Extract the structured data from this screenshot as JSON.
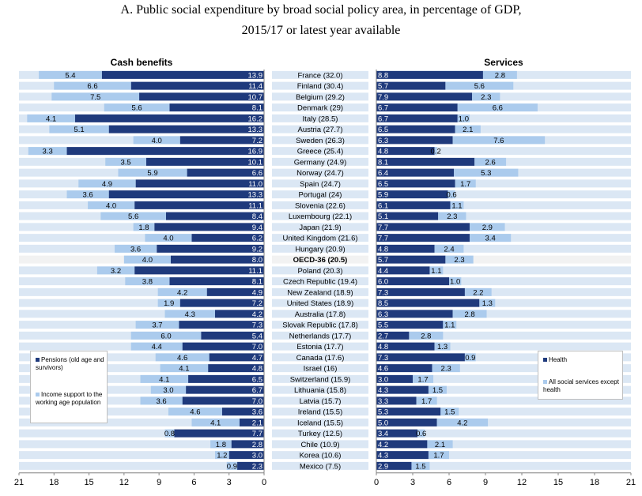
{
  "title_line1": "A. Public social expenditure by broad social policy area, in percentage of GDP,",
  "title_line2": "2015/17 or latest year available",
  "colors": {
    "dark": "#1f3a7c",
    "light": "#abcbed",
    "band": "#dbe7f4",
    "bold_band": "#f2f2f2"
  },
  "chart_data": [
    {
      "type": "bar",
      "title": "Cash benefits",
      "orientation": "horizontal-reversed",
      "stacked": true,
      "xlim": [
        21,
        0
      ],
      "ticks": [
        "21",
        "18",
        "15",
        "12",
        "9",
        "6",
        "3",
        "0"
      ],
      "legend_position": "bottom-left",
      "series": [
        {
          "name": "Pensions (old age and survivors)",
          "color": "#1f3a7c",
          "values": [
            13.9,
            11.4,
            10.7,
            8.1,
            16.2,
            13.3,
            7.2,
            16.9,
            10.1,
            6.6,
            11.0,
            13.3,
            11.1,
            8.4,
            9.4,
            6.2,
            9.2,
            8.0,
            11.1,
            8.1,
            4.9,
            7.2,
            4.2,
            7.3,
            5.4,
            7.0,
            4.7,
            4.8,
            6.5,
            6.7,
            7.0,
            3.6,
            2.1,
            7.7,
            2.8,
            3.0,
            2.3
          ]
        },
        {
          "name": "Income support to the working age population",
          "color": "#abcbed",
          "values": [
            5.4,
            6.6,
            7.5,
            5.6,
            4.1,
            5.1,
            4.0,
            3.3,
            3.5,
            5.9,
            4.9,
            3.6,
            4.0,
            5.6,
            1.8,
            4.0,
            3.6,
            4.0,
            3.2,
            3.8,
            4.2,
            1.9,
            4.3,
            3.7,
            6.0,
            4.4,
            4.6,
            4.1,
            4.1,
            3.0,
            3.6,
            4.6,
            4.1,
            0.8,
            1.8,
            1.2,
            0.9
          ]
        }
      ]
    },
    {
      "type": "bar",
      "title": "Services",
      "orientation": "horizontal",
      "stacked": true,
      "xlim": [
        0,
        21
      ],
      "ticks": [
        "0",
        "3",
        "6",
        "9",
        "12",
        "15",
        "18",
        "21"
      ],
      "legend_position": "right",
      "series": [
        {
          "name": "Health",
          "color": "#1f3a7c",
          "values": [
            8.8,
            5.7,
            7.9,
            6.7,
            6.7,
            6.5,
            6.3,
            4.8,
            8.1,
            6.4,
            6.5,
            5.9,
            6.1,
            5.1,
            7.7,
            7.7,
            4.8,
            5.7,
            4.4,
            6.0,
            7.3,
            8.5,
            6.3,
            5.5,
            2.7,
            4.8,
            7.3,
            4.6,
            3.0,
            4.3,
            3.3,
            5.3,
            5.0,
            3.4,
            4.2,
            4.3,
            2.9
          ]
        },
        {
          "name": "All social services except health",
          "color": "#abcbed",
          "values": [
            2.8,
            5.6,
            2.3,
            6.6,
            1.0,
            2.1,
            7.6,
            0.2,
            2.6,
            5.3,
            1.7,
            0.6,
            1.1,
            2.3,
            2.9,
            3.4,
            2.4,
            2.3,
            1.1,
            1.0,
            2.2,
            1.3,
            2.8,
            1.1,
            2.8,
            1.3,
            0.9,
            2.3,
            1.7,
            1.5,
            1.7,
            1.5,
            4.2,
            0.6,
            2.1,
            1.7,
            1.5
          ]
        }
      ]
    }
  ],
  "countries": [
    "France (32.0)",
    "Finland (30.4)",
    "Belgium (29.2)",
    "Denmark (29)",
    "Italy (28.5)",
    "Austria (27.7)",
    "Sweden (26.3)",
    "Greece (25.4)",
    "Germany (24.9)",
    "Norway (24.7)",
    "Spain (24.7)",
    "Portugal (24)",
    "Slovenia (22.6)",
    "Luxembourg (22.1)",
    "Japan (21.9)",
    "United Kingdom (21.6)",
    "Hungary (20.9)",
    "OECD-36 (20.5)",
    "Poland (20.3)",
    "Czech Republic (19.4)",
    "New Zealand (18.9)",
    "United States (18.9)",
    "Australia (17.8)",
    "Slovak Republic (17.8)",
    "Netherlands (17.7)",
    "Estonia (17.7)",
    "Canada (17.6)",
    "Israel (16)",
    "Switzerland (15.9)",
    "Lithuania (15.8)",
    "Latvia (15.7)",
    "Ireland (15.5)",
    "Iceland (15.5)",
    "Turkey (12.5)",
    "Chile (10.9)",
    "Korea (10.6)",
    "Mexico (7.5)"
  ],
  "bold_country": "OECD-36 (20.5)",
  "left_legend": {
    "series1": "Pensions (old age and survivors)",
    "series2": "Income support to the working age population"
  },
  "right_legend": {
    "series1": "Health",
    "series2": "All social services except health"
  }
}
